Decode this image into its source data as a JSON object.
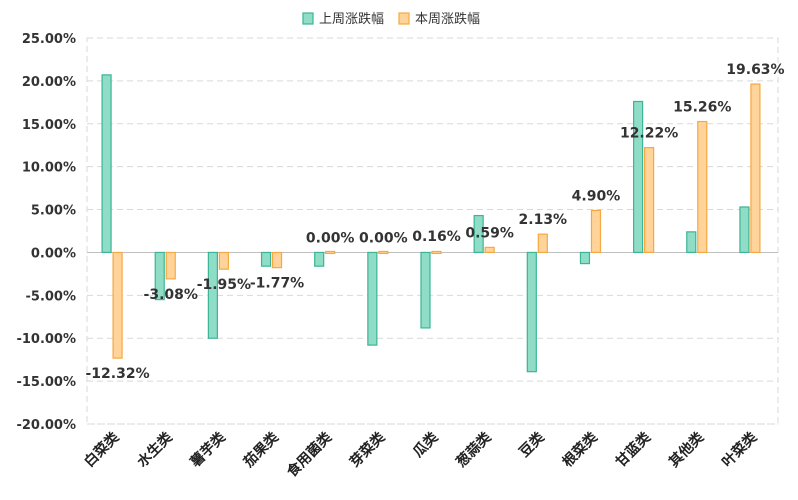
{
  "chart_data": {
    "type": "bar",
    "categories": [
      "白菜类",
      "水生类",
      "薯芋类",
      "茄果类",
      "食用菌类",
      "芽菜类",
      "瓜类",
      "葱蒜类",
      "豆类",
      "根菜类",
      "甘蓝类",
      "其他类",
      "叶菜类"
    ],
    "series": [
      {
        "name": "上周涨跌幅",
        "values": [
          20.7,
          -5.5,
          -10.0,
          -1.6,
          -1.6,
          -10.8,
          -8.8,
          4.3,
          -13.9,
          -1.3,
          17.6,
          2.4,
          5.3
        ],
        "color": "#8fdcc7",
        "stroke": "#3bb595"
      },
      {
        "name": "本周涨跌幅",
        "values": [
          -12.32,
          -3.08,
          -1.95,
          -1.77,
          0.0,
          0.0,
          0.16,
          0.59,
          2.13,
          4.9,
          12.22,
          15.26,
          19.63
        ],
        "color": "#ffd39a",
        "stroke": "#f5a940"
      }
    ],
    "data_labels": [
      "-12.32%",
      "-3.08%",
      "-1.95%",
      "-1.77%",
      "0.00%",
      "0.00%",
      "0.16%",
      "0.59%",
      "2.13%",
      "4.90%",
      "12.22%",
      "15.26%",
      "19.63%"
    ],
    "yticks": [
      "25.00%",
      "20.00%",
      "15.00%",
      "10.00%",
      "5.00%",
      "0.00%",
      "-5.00%",
      "-10.00%",
      "-15.00%",
      "-20.00%"
    ],
    "ylim": [
      -20,
      25
    ],
    "legend_position": "top-center",
    "grid": true
  }
}
